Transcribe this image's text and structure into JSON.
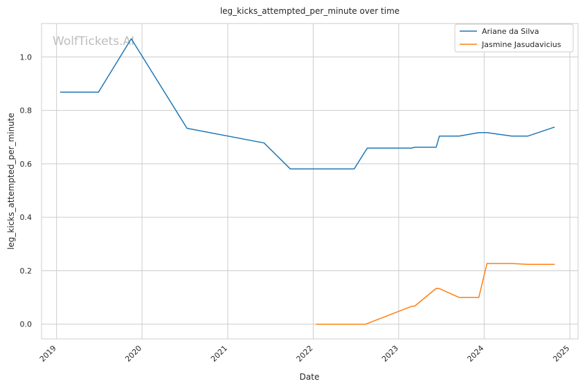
{
  "chart_data": {
    "type": "line",
    "title": "leg_kicks_attempted_per_minute over time",
    "xlabel": "Date",
    "ylabel": "leg_kicks_attempted_per_minute",
    "watermark": "WolfTickets.AI",
    "xlim": [
      "2018-10-29",
      "2025-02-05"
    ],
    "ylim": [
      -0.055,
      1.125
    ],
    "x_ticks": [
      "2019",
      "2020",
      "2021",
      "2022",
      "2023",
      "2024",
      "2025"
    ],
    "y_ticks": [
      "0.0",
      "0.2",
      "0.4",
      "0.6",
      "0.8",
      "1.0"
    ],
    "grid": true,
    "legend_position": "top-right",
    "series": [
      {
        "name": "Ariane da Silva",
        "color": "#1f77b4",
        "points": [
          [
            "2019-01-19",
            0.868
          ],
          [
            "2019-06-29",
            0.868
          ],
          [
            "2019-11-16",
            1.068
          ],
          [
            "2020-07-11",
            0.733
          ],
          [
            "2021-06-05",
            0.678
          ],
          [
            "2021-09-25",
            0.581
          ],
          [
            "2022-06-25",
            0.581
          ],
          [
            "2022-08-20",
            0.659
          ],
          [
            "2023-02-25",
            0.659
          ],
          [
            "2023-03-11",
            0.662
          ],
          [
            "2023-06-10",
            0.662
          ],
          [
            "2023-06-24",
            0.704
          ],
          [
            "2023-09-16",
            0.704
          ],
          [
            "2023-12-09",
            0.717
          ],
          [
            "2024-01-13",
            0.717
          ],
          [
            "2024-04-27",
            0.704
          ],
          [
            "2024-07-06",
            0.704
          ],
          [
            "2024-10-26",
            0.737
          ]
        ]
      },
      {
        "name": "Jasmine Jasudavicius",
        "color": "#ff7f0e",
        "points": [
          [
            "2022-01-15",
            0.0
          ],
          [
            "2022-08-13",
            0.0
          ],
          [
            "2023-02-25",
            0.067
          ],
          [
            "2023-03-11",
            0.068
          ],
          [
            "2023-06-10",
            0.134
          ],
          [
            "2023-06-24",
            0.133
          ],
          [
            "2023-09-16",
            0.1
          ],
          [
            "2023-12-09",
            0.1
          ],
          [
            "2024-01-13",
            0.227
          ],
          [
            "2024-04-27",
            0.227
          ],
          [
            "2024-07-06",
            0.224
          ],
          [
            "2024-10-26",
            0.224
          ]
        ]
      }
    ]
  }
}
